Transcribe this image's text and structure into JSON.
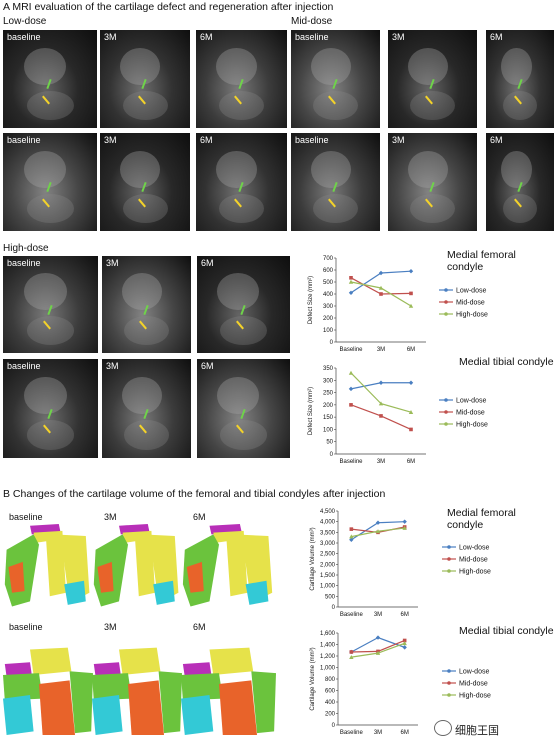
{
  "panel_a": {
    "title": "A  MRI evaluation of the cartilage defect and regeneration after injection",
    "groups": {
      "low": "Low-dose",
      "mid": "Mid-dose",
      "high": "High-dose"
    },
    "timepoints": [
      "baseline",
      "3M",
      "6M"
    ]
  },
  "panel_b": {
    "title": "B  Changes of the cartilage volume of the femoral and tibial condyles after injection",
    "timepoints": [
      "baseline",
      "3M",
      "6M"
    ]
  },
  "watermark": "细胞王国",
  "colors": {
    "low": "#4a7fc1",
    "mid": "#c0504d",
    "high": "#9bbb59"
  },
  "chart_data": [
    {
      "type": "line",
      "title": "Medial femoral condyle",
      "ylabel": "Defect Size (mm²)",
      "categories": [
        "Baseline",
        "3M",
        "6M"
      ],
      "ylim": [
        0,
        700
      ],
      "yticks": [
        0,
        100,
        200,
        300,
        400,
        500,
        600,
        700
      ],
      "series": [
        {
          "name": "Low-dose",
          "values": [
            410,
            575,
            590
          ]
        },
        {
          "name": "Mid-dose",
          "values": [
            535,
            400,
            405
          ]
        },
        {
          "name": "High-dose",
          "values": [
            500,
            450,
            300
          ]
        }
      ]
    },
    {
      "type": "line",
      "title": "Medial tibial condyle",
      "ylabel": "Defect Size (mm²)",
      "categories": [
        "Baseline",
        "3M",
        "6M"
      ],
      "ylim": [
        0,
        350
      ],
      "yticks": [
        0,
        50,
        100,
        150,
        200,
        250,
        300,
        350
      ],
      "series": [
        {
          "name": "Low-dose",
          "values": [
            265,
            290,
            290
          ]
        },
        {
          "name": "Mid-dose",
          "values": [
            200,
            155,
            100
          ]
        },
        {
          "name": "High-dose",
          "values": [
            330,
            205,
            170
          ]
        }
      ]
    },
    {
      "type": "line",
      "title": "Medial femoral condyle",
      "ylabel": "Cartilage Volume (mm³)",
      "categories": [
        "Baseline",
        "3M",
        "6M"
      ],
      "ylim": [
        0,
        4500
      ],
      "yticks": [
        0,
        500,
        1000,
        1500,
        2000,
        2500,
        3000,
        3500,
        4000,
        4500
      ],
      "ytick_labels": [
        "0",
        "500",
        "1,000",
        "1,500",
        "2,000",
        "2,500",
        "3,000",
        "3,500",
        "4,000",
        "4,500"
      ],
      "series": [
        {
          "name": "Low-dose",
          "values": [
            3150,
            3950,
            4000
          ]
        },
        {
          "name": "Mid-dose",
          "values": [
            3650,
            3500,
            3750
          ]
        },
        {
          "name": "High-dose",
          "values": [
            3300,
            3550,
            3700
          ]
        }
      ]
    },
    {
      "type": "line",
      "title": "Medial tibial condyle",
      "ylabel": "Cartilage Volume (mm³)",
      "categories": [
        "Baseline",
        "3M",
        "6M"
      ],
      "ylim": [
        0,
        1600
      ],
      "yticks": [
        0,
        200,
        400,
        600,
        800,
        1000,
        1200,
        1400,
        1600
      ],
      "ytick_labels": [
        "0",
        "200",
        "400",
        "600",
        "800",
        "1,000",
        "1,200",
        "1,400",
        "1,600"
      ],
      "series": [
        {
          "name": "Low-dose",
          "values": [
            1270,
            1520,
            1350
          ]
        },
        {
          "name": "Mid-dose",
          "values": [
            1270,
            1280,
            1470
          ]
        },
        {
          "name": "High-dose",
          "values": [
            1180,
            1250,
            1420
          ]
        }
      ]
    }
  ]
}
